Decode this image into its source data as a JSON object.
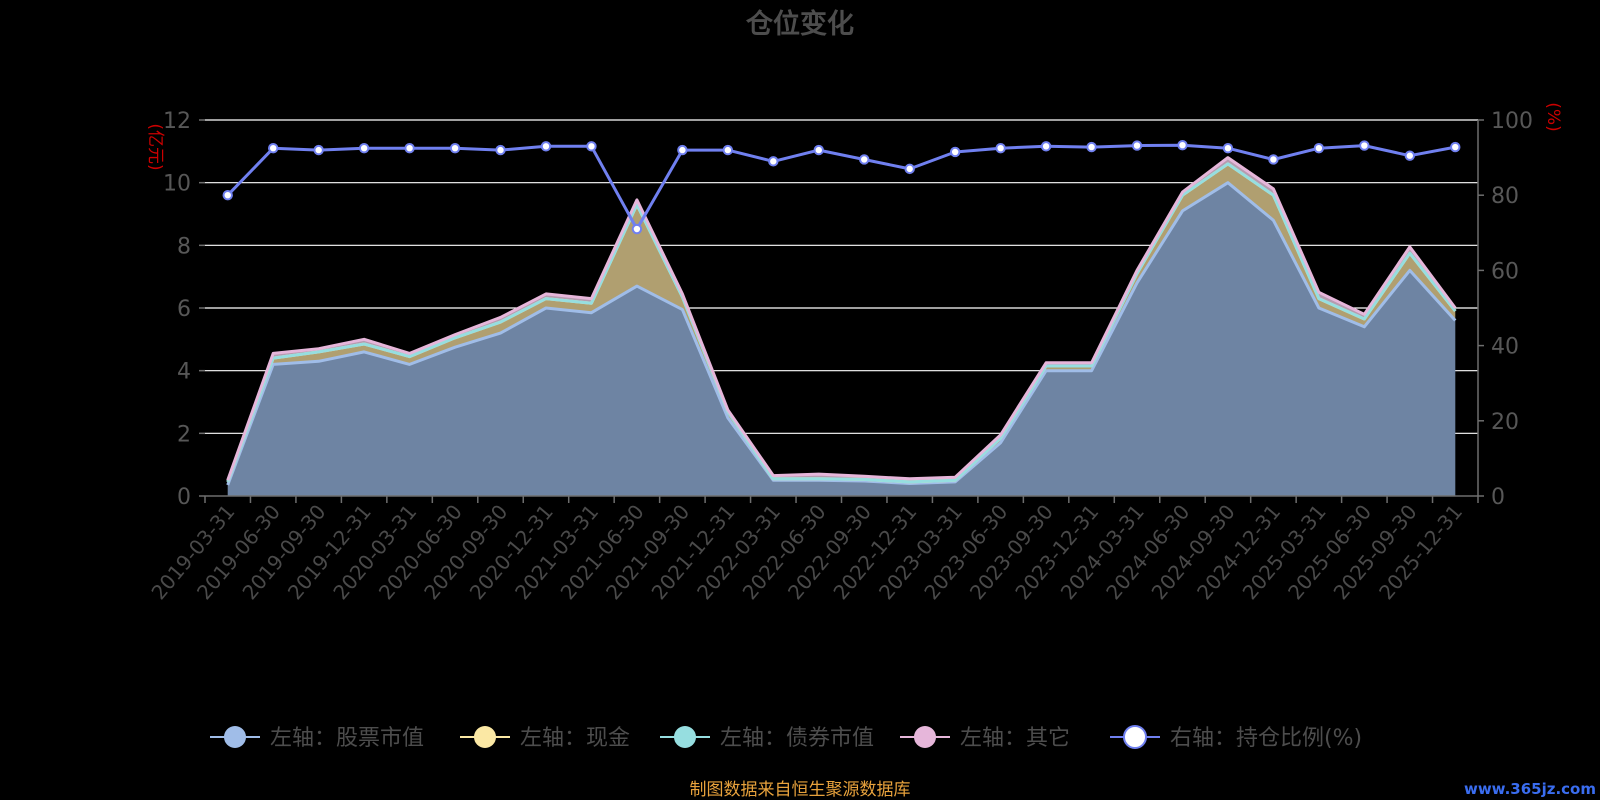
{
  "chart_data": {
    "type": "area",
    "title": "仓位变化",
    "left_axis_unit": "(亿元)",
    "right_axis_unit": "(%)",
    "left_axis": {
      "min": 0,
      "max": 12,
      "ticks": [
        0,
        2,
        4,
        6,
        8,
        10,
        12
      ]
    },
    "right_axis": {
      "min": 0,
      "max": 100,
      "ticks": [
        0,
        20,
        40,
        60,
        80,
        100
      ]
    },
    "grid": true,
    "stacked": true,
    "legend_position": "bottom",
    "categories": [
      "2019-03-31",
      "2019-06-30",
      "2019-09-30",
      "2019-12-31",
      "2020-03-31",
      "2020-06-30",
      "2020-09-30",
      "2020-12-31",
      "2021-03-31",
      "2021-06-30",
      "2021-09-30",
      "2021-12-31",
      "2022-03-31",
      "2022-06-30",
      "2022-09-30",
      "2022-12-31",
      "2023-03-31",
      "2023-06-30",
      "2023-09-30",
      "2023-12-31",
      "2024-03-31",
      "2024-06-30",
      "2024-09-30",
      "2024-12-31",
      "2025-03-31",
      "2025-06-30",
      "2025-09-30",
      "2025-12-31"
    ],
    "series": [
      {
        "name": "左轴：股票市值",
        "axis": "left",
        "color": "#a0bde8",
        "fill": "#6e84a3",
        "values": [
          0.35,
          4.2,
          4.3,
          4.6,
          4.2,
          4.75,
          5.2,
          6.0,
          5.85,
          6.7,
          5.95,
          2.5,
          0.5,
          0.5,
          0.48,
          0.4,
          0.45,
          1.7,
          4.0,
          4.0,
          6.8,
          9.1,
          10.0,
          8.8,
          6.0,
          5.4,
          7.2,
          5.6
        ]
      },
      {
        "name": "左轴：现金",
        "axis": "left",
        "color": "#fbe8a4",
        "fill": "#b09f70",
        "values": [
          0.1,
          0.2,
          0.3,
          0.25,
          0.25,
          0.3,
          0.35,
          0.3,
          0.3,
          2.6,
          0.4,
          0.2,
          0.05,
          0.05,
          0.05,
          0.05,
          0.05,
          0.15,
          0.15,
          0.15,
          0.3,
          0.5,
          0.6,
          0.8,
          0.3,
          0.25,
          0.55,
          0.3
        ]
      },
      {
        "name": "左轴：债券市值",
        "axis": "left",
        "color": "#96dee0",
        "fill": "#8aa3a5",
        "values": [
          0,
          0,
          0,
          0,
          0,
          0,
          0,
          0,
          0,
          0,
          0,
          0,
          0,
          0,
          0,
          0,
          0,
          0,
          0,
          0,
          0,
          0,
          0,
          0,
          0,
          0,
          0,
          0
        ]
      },
      {
        "name": "左轴：其它",
        "axis": "left",
        "color": "#e6b6da",
        "fill": "#b59bb0",
        "values": [
          0.05,
          0.15,
          0.1,
          0.15,
          0.1,
          0.1,
          0.15,
          0.15,
          0.15,
          0.15,
          0.1,
          0.05,
          0.1,
          0.15,
          0.1,
          0.1,
          0.1,
          0.1,
          0.1,
          0.1,
          0.1,
          0.1,
          0.2,
          0.2,
          0.2,
          0.15,
          0.2,
          0.1
        ]
      },
      {
        "name": "右轴：持仓比例(%)",
        "axis": "right",
        "type": "line",
        "color": "#7080f0",
        "marker_fill": "#ffffff",
        "values": [
          80,
          92.5,
          92,
          92.5,
          92.5,
          92.5,
          92,
          93,
          93,
          71,
          92,
          92,
          89,
          92,
          89.5,
          87,
          91.5,
          92.5,
          93,
          92.8,
          93.2,
          93.3,
          92.5,
          89.5,
          92.5,
          93.2,
          90.5,
          92.8
        ]
      }
    ],
    "footer_source": "制图数据来自恒生聚源数据库",
    "watermark": "www.365jz.com"
  }
}
